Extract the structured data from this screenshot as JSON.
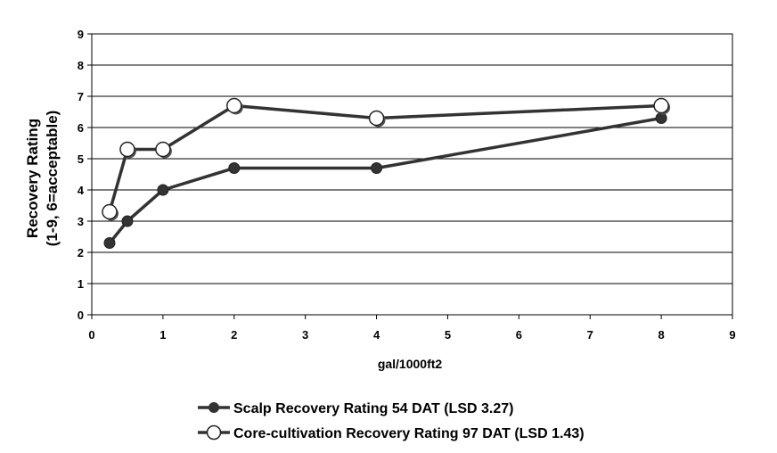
{
  "chart_data": {
    "type": "line",
    "title": "",
    "xlabel": "gal/1000ft2",
    "ylabel": "Recovery Rating",
    "ylabel_sub": "(1-9, 6=acceptable)",
    "xlim": [
      0,
      9
    ],
    "ylim": [
      0,
      9
    ],
    "x_ticks": [
      "0",
      "1",
      "2",
      "3",
      "4",
      "5",
      "6",
      "7",
      "8",
      "9"
    ],
    "y_ticks": [
      "0",
      "1",
      "2",
      "3",
      "4",
      "5",
      "6",
      "7",
      "8",
      "9"
    ],
    "grid": "horizontal",
    "legend_position": "bottom",
    "series": [
      {
        "name": "Scalp Recovery Rating 54 DAT (LSD 3.27)",
        "marker": "filled-circle",
        "color": "#333333",
        "x": [
          0.25,
          0.5,
          1,
          2,
          4,
          8
        ],
        "y": [
          2.3,
          3.0,
          4.0,
          4.7,
          4.7,
          6.3
        ]
      },
      {
        "name": "Core-cultivation Recovery Rating 97 DAT (LSD 1.43)",
        "marker": "open-circle",
        "color": "#333333",
        "x": [
          0.25,
          0.5,
          1,
          2,
          4,
          8
        ],
        "y": [
          3.3,
          5.3,
          5.3,
          6.7,
          6.3,
          6.7
        ]
      }
    ]
  }
}
